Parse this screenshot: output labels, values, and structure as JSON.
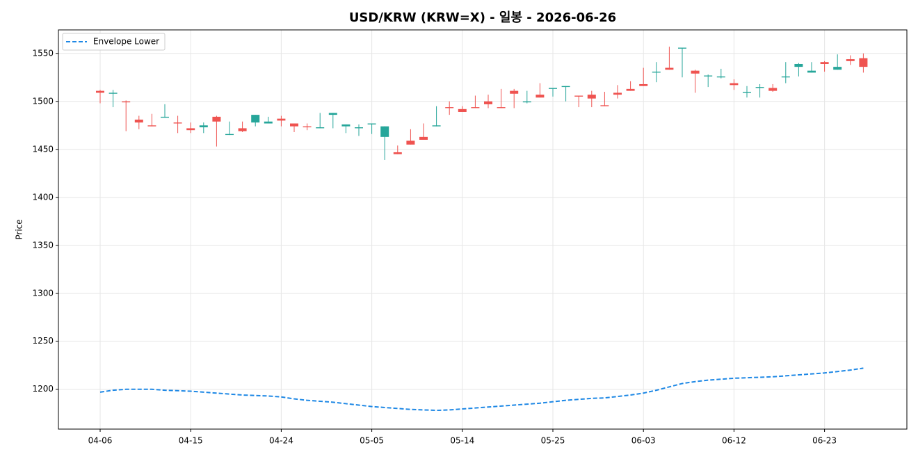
{
  "chart_data": {
    "type": "candlestick",
    "title": "USD/KRW (KRW=X) - 일봉 - 2026-06-26",
    "y_label": "Price",
    "categories": [
      "04-06",
      null,
      null,
      null,
      null,
      null,
      null,
      "04-15",
      null,
      null,
      null,
      null,
      null,
      null,
      "04-24",
      null,
      null,
      null,
      null,
      null,
      null,
      "05-05",
      null,
      null,
      null,
      null,
      null,
      null,
      "05-14",
      null,
      null,
      null,
      null,
      null,
      null,
      "05-25",
      null,
      null,
      null,
      null,
      null,
      null,
      "06-03",
      null,
      null,
      null,
      null,
      null,
      null,
      "06-12",
      null,
      null,
      null,
      null,
      null,
      null,
      "06-23",
      null,
      null,
      null
    ],
    "open": [
      1511,
      1508,
      1500,
      1481,
      1475,
      1483,
      1478,
      1472,
      1473,
      1484,
      1465,
      1472,
      1478,
      1477,
      1482,
      1477,
      1474,
      1472,
      1486,
      1474,
      1472,
      1476,
      1463,
      1447,
      1459,
      1463,
      1474,
      1494,
      1492,
      1494,
      1500,
      1494,
      1511,
      1499,
      1507,
      1513,
      1515,
      1506,
      1507,
      1496,
      1509,
      1513,
      1518,
      1530,
      1535,
      1555,
      1532,
      1526,
      1525,
      1519,
      1509,
      1514,
      1514,
      1525,
      1536,
      1530,
      1541,
      1533,
      1544,
      1545
    ],
    "high": [
      1512,
      1512,
      1501,
      1485,
      1487,
      1497,
      1485,
      1478,
      1478,
      1485,
      1479,
      1479,
      1486,
      1484,
      1485,
      1477,
      1477,
      1488,
      1488,
      1476,
      1476,
      1477,
      1474,
      1454,
      1471,
      1477,
      1495,
      1500,
      1495,
      1506,
      1507,
      1513,
      1513,
      1511,
      1519,
      1514,
      1516,
      1506,
      1511,
      1510,
      1517,
      1521,
      1535,
      1541,
      1557,
      1556,
      1533,
      1528,
      1534,
      1523,
      1516,
      1518,
      1518,
      1541,
      1540,
      1541,
      1542,
      1549,
      1548,
      1550
    ],
    "low": [
      1498,
      1494,
      1469,
      1471,
      1474,
      1483,
      1467,
      1467,
      1467,
      1453,
      1465,
      1468,
      1474,
      1477,
      1474,
      1468,
      1470,
      1472,
      1472,
      1467,
      1464,
      1466,
      1439,
      1445,
      1455,
      1460,
      1474,
      1486,
      1489,
      1493,
      1493,
      1493,
      1493,
      1498,
      1504,
      1505,
      1500,
      1494,
      1494,
      1495,
      1503,
      1511,
      1516,
      1520,
      1533,
      1525,
      1509,
      1515,
      1524,
      1512,
      1504,
      1504,
      1510,
      1519,
      1526,
      1530,
      1531,
      1533,
      1538,
      1530
    ],
    "close": [
      1509,
      1509,
      1499,
      1478,
      1474,
      1484,
      1477,
      1470,
      1475,
      1479,
      1466,
      1469,
      1486,
      1479,
      1480,
      1474,
      1473,
      1473,
      1488,
      1476,
      1473,
      1477,
      1474,
      1445,
      1455,
      1460,
      1475,
      1493,
      1489,
      1493,
      1497,
      1493,
      1508,
      1500,
      1504,
      1514,
      1516,
      1505,
      1503,
      1495,
      1507,
      1511,
      1516,
      1531,
      1533,
      1556,
      1529,
      1527,
      1526,
      1517,
      1510,
      1515,
      1511,
      1526,
      1539,
      1532,
      1539,
      1536,
      1542,
      1536
    ],
    "up_color": "#26a69a",
    "down_color": "#ef5350",
    "series": [
      {
        "name": "Envelope Lower",
        "color": "#1e88e5",
        "dashed": true,
        "values": [
          1197,
          1199,
          1200,
          1200,
          1200,
          1199,
          1198.5,
          1198,
          1197,
          1196,
          1195,
          1194,
          1193.5,
          1193,
          1192,
          1190,
          1188.5,
          1187.5,
          1186.5,
          1185,
          1183.5,
          1182,
          1181,
          1180,
          1179,
          1178.5,
          1178,
          1178.5,
          1179.5,
          1180.5,
          1181.5,
          1182.5,
          1183.5,
          1184.5,
          1185.5,
          1187,
          1188.5,
          1189.5,
          1190.5,
          1191,
          1192.5,
          1194,
          1196,
          1199,
          1202.5,
          1206,
          1208,
          1209.5,
          1210.5,
          1211.5,
          1212,
          1212.5,
          1213,
          1214,
          1215,
          1216,
          1217,
          1218.5,
          1220,
          1222
        ]
      }
    ],
    "ylim": [
      1158.5,
      1574.5
    ],
    "yticks": [
      1200,
      1250,
      1300,
      1350,
      1400,
      1450,
      1500,
      1550
    ],
    "grid": true,
    "legend": "upper left"
  }
}
